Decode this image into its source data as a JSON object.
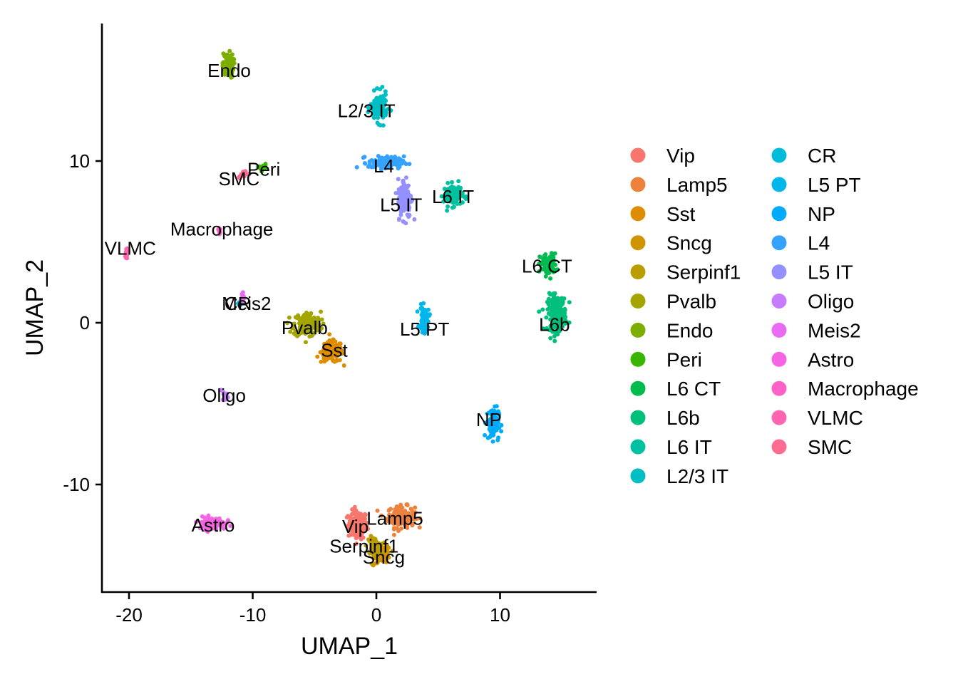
{
  "chart_data": {
    "type": "scatter",
    "title": "",
    "xlabel": "UMAP_1",
    "ylabel": "UMAP_2",
    "xlim": [
      -22.1,
      17.8
    ],
    "ylim": [
      -16.7,
      18.4
    ],
    "xticks": [
      -20,
      -10,
      0,
      10
    ],
    "yticks": [
      -10,
      0,
      10
    ],
    "xtick_labels": [
      "-20",
      "-10",
      "0",
      "10"
    ],
    "ytick_labels": [
      "-10",
      "0",
      "10"
    ],
    "grid": false,
    "legend_position": "right",
    "legend_columns": 2,
    "series": [
      {
        "name": "Vip",
        "color": "#F8766D",
        "center": [
          -1.5,
          -12.5
        ],
        "spread": [
          0.7,
          0.8
        ],
        "label_pos": [
          -1.7,
          -12.6
        ]
      },
      {
        "name": "Lamp5",
        "color": "#EC823C",
        "center": [
          2.0,
          -12.0
        ],
        "spread": [
          1.0,
          0.6
        ],
        "label_pos": [
          1.5,
          -12.1
        ]
      },
      {
        "name": "Sst",
        "color": "#DE8C00",
        "center": [
          -3.6,
          -1.8
        ],
        "spread": [
          0.8,
          0.6
        ],
        "label_pos": [
          -3.4,
          -1.7
        ]
      },
      {
        "name": "Sncg",
        "color": "#CF9400",
        "center": [
          0.5,
          -14.3
        ],
        "spread": [
          0.6,
          0.5
        ],
        "label_pos": [
          0.6,
          -14.5
        ]
      },
      {
        "name": "Serpinf1",
        "color": "#BB9D00",
        "center": [
          -0.2,
          -13.8
        ],
        "spread": [
          0.5,
          0.5
        ],
        "label_pos": [
          -1.0,
          -13.8
        ]
      },
      {
        "name": "Pvalb",
        "color": "#A3A500",
        "center": [
          -5.6,
          -0.1
        ],
        "spread": [
          1.0,
          0.7
        ],
        "label_pos": [
          -5.8,
          -0.3
        ]
      },
      {
        "name": "Endo",
        "color": "#7CAE00",
        "center": [
          -12.0,
          15.9
        ],
        "spread": [
          0.4,
          0.7
        ],
        "label_pos": [
          -11.9,
          15.6
        ]
      },
      {
        "name": "Peri",
        "color": "#39B600",
        "center": [
          -9.2,
          9.6
        ],
        "spread": [
          0.3,
          0.2
        ],
        "label_pos": [
          -9.1,
          9.5
        ]
      },
      {
        "name": "L6 CT",
        "color": "#00BB4E",
        "center": [
          13.9,
          3.6
        ],
        "spread": [
          0.6,
          0.6
        ],
        "label_pos": [
          13.8,
          3.5
        ]
      },
      {
        "name": "L6b",
        "color": "#00BF7D",
        "center": [
          14.6,
          0.6
        ],
        "spread": [
          0.7,
          1.0
        ],
        "label_pos": [
          14.4,
          -0.1
        ]
      },
      {
        "name": "L6 IT",
        "color": "#00C19F",
        "center": [
          6.2,
          7.9
        ],
        "spread": [
          0.7,
          0.6
        ],
        "label_pos": [
          6.2,
          7.8
        ]
      },
      {
        "name": "L2/3 IT",
        "color": "#00BFC4",
        "center": [
          0.2,
          13.3
        ],
        "spread": [
          0.6,
          0.8
        ],
        "label_pos": [
          -0.8,
          13.1
        ]
      },
      {
        "name": "CR",
        "color": "#00BCD8",
        "center": [
          -11.0,
          1.2
        ],
        "spread": [
          0.15,
          0.15
        ],
        "label_pos": [
          -11.2,
          1.2
        ]
      },
      {
        "name": "L5 PT",
        "color": "#00B6EB",
        "center": [
          3.9,
          0.2
        ],
        "spread": [
          0.35,
          0.7
        ],
        "label_pos": [
          3.9,
          -0.4
        ]
      },
      {
        "name": "NP",
        "color": "#00ABFD",
        "center": [
          9.4,
          -6.2
        ],
        "spread": [
          0.45,
          0.9
        ],
        "label_pos": [
          9.1,
          -6.0
        ]
      },
      {
        "name": "L4",
        "color": "#35A2FF",
        "center": [
          0.8,
          9.9
        ],
        "spread": [
          1.3,
          0.35
        ],
        "label_pos": [
          0.6,
          9.7
        ]
      },
      {
        "name": "L5 IT",
        "color": "#9590FF",
        "center": [
          2.3,
          7.7
        ],
        "spread": [
          0.5,
          1.1
        ],
        "label_pos": [
          2.0,
          7.3
        ]
      },
      {
        "name": "Oligo",
        "color": "#C77CFF",
        "center": [
          -12.2,
          -4.5
        ],
        "spread": [
          0.2,
          0.3
        ],
        "label_pos": [
          -12.3,
          -4.5
        ]
      },
      {
        "name": "Meis2",
        "color": "#E76BF3",
        "center": [
          -10.8,
          1.6
        ],
        "spread": [
          0.15,
          0.3
        ],
        "label_pos": [
          -10.5,
          1.2
        ]
      },
      {
        "name": "Astro",
        "color": "#F564E3",
        "center": [
          -13.3,
          -12.4
        ],
        "spread": [
          1.0,
          0.35
        ],
        "label_pos": [
          -13.2,
          -12.5
        ]
      },
      {
        "name": "Macrophage",
        "color": "#FF61C9",
        "center": [
          -12.7,
          5.7
        ],
        "spread": [
          0.1,
          0.3
        ],
        "label_pos": [
          -12.5,
          5.8
        ]
      },
      {
        "name": "VLMC",
        "color": "#FF64B0",
        "center": [
          -20.2,
          4.3
        ],
        "spread": [
          0.2,
          0.35
        ],
        "label_pos": [
          -19.9,
          4.6
        ]
      },
      {
        "name": "SMC",
        "color": "#FF6C91",
        "center": [
          -10.8,
          9.2
        ],
        "spread": [
          0.3,
          0.2
        ],
        "label_pos": [
          -11.1,
          8.9
        ]
      }
    ]
  }
}
